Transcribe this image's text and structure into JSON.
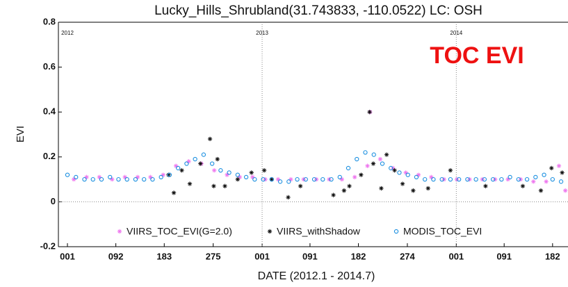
{
  "chart_data": {
    "type": "scatter",
    "title": "Lucky_Hills_Shrubland(31.743833, -110.0522) LC: OSH",
    "annotation": "TOC EVI",
    "annotation_color": "#ee1111",
    "x_label": "DATE (2012.1 - 2014.7)",
    "y_label": "EVI",
    "xlim": [
      -17,
      941
    ],
    "ylim": [
      -0.2,
      0.8
    ],
    "yticks": [
      -0.2,
      0,
      0.2,
      0.4,
      0.6,
      0.8
    ],
    "xticks": [
      {
        "value": 0,
        "label": "001"
      },
      {
        "value": 91,
        "label": "092"
      },
      {
        "value": 182,
        "label": "183"
      },
      {
        "value": 274,
        "label": "275"
      },
      {
        "value": 366,
        "label": "001"
      },
      {
        "value": 456,
        "label": "091"
      },
      {
        "value": 547,
        "label": "182"
      },
      {
        "value": 639,
        "label": "274"
      },
      {
        "value": 731,
        "label": "001"
      },
      {
        "value": 821,
        "label": "091"
      },
      {
        "value": 912,
        "label": "182"
      }
    ],
    "year_markers": [
      {
        "value": 0,
        "label": "2012"
      },
      {
        "value": 366,
        "label": "2013"
      },
      {
        "value": 731,
        "label": "2014"
      }
    ],
    "zero_line": true,
    "series": [
      {
        "name": "VIIRS_TOC_EVI(G=2.0)",
        "color": "#ee77ee",
        "marker": "asterisk",
        "x": [
          12,
          36,
          60,
          84,
          108,
          132,
          156,
          180,
          204,
          228,
          252,
          276,
          300,
          324,
          348,
          372,
          396,
          420,
          444,
          468,
          492,
          516,
          540,
          564,
          569,
          588,
          612,
          636,
          660,
          684,
          708,
          732,
          756,
          780,
          804,
          828,
          852,
          876,
          900,
          924,
          936
        ],
        "values": [
          0.1,
          0.11,
          0.11,
          0.1,
          0.11,
          0.11,
          0.11,
          0.12,
          0.16,
          0.18,
          0.17,
          0.14,
          0.12,
          0.11,
          0.11,
          0.1,
          0.1,
          0.1,
          0.1,
          0.1,
          0.1,
          0.1,
          0.11,
          0.16,
          0.4,
          0.19,
          0.15,
          0.13,
          0.12,
          0.11,
          0.1,
          0.1,
          0.1,
          0.1,
          0.1,
          0.1,
          0.1,
          0.09,
          0.09,
          0.16,
          0.05
        ]
      },
      {
        "name": "VIIRS_withShadow",
        "color": "#111111",
        "marker": "asterisk",
        "x": [
          190,
          200,
          215,
          230,
          250,
          268,
          275,
          282,
          296,
          320,
          346,
          370,
          384,
          415,
          438,
          500,
          520,
          530,
          552,
          568,
          575,
          590,
          600,
          615,
          630,
          650,
          678,
          720,
          786,
          856,
          890,
          910,
          930
        ],
        "values": [
          0.12,
          0.04,
          0.14,
          0.08,
          0.17,
          0.28,
          0.07,
          0.19,
          0.07,
          0.1,
          0.13,
          0.14,
          0.1,
          0.02,
          0.07,
          0.03,
          0.05,
          0.07,
          0.12,
          0.4,
          0.17,
          0.06,
          0.21,
          0.14,
          0.08,
          0.05,
          0.06,
          0.14,
          0.07,
          0.07,
          0.05,
          0.15,
          0.13
        ]
      },
      {
        "name": "MODIS_TOC_EVI",
        "color": "#1a8fe0",
        "marker": "circle",
        "x": [
          0,
          16,
          32,
          48,
          64,
          80,
          96,
          112,
          128,
          144,
          160,
          176,
          192,
          208,
          224,
          240,
          256,
          272,
          288,
          304,
          320,
          336,
          352,
          368,
          384,
          400,
          416,
          432,
          448,
          464,
          480,
          496,
          512,
          528,
          544,
          560,
          576,
          592,
          608,
          624,
          640,
          656,
          672,
          688,
          704,
          720,
          736,
          752,
          768,
          784,
          800,
          816,
          832,
          848,
          864,
          880,
          896,
          912,
          928
        ],
        "values": [
          0.12,
          0.11,
          0.1,
          0.1,
          0.1,
          0.11,
          0.1,
          0.1,
          0.1,
          0.1,
          0.1,
          0.11,
          0.12,
          0.15,
          0.17,
          0.19,
          0.21,
          0.17,
          0.14,
          0.13,
          0.12,
          0.11,
          0.1,
          0.1,
          0.1,
          0.09,
          0.09,
          0.1,
          0.1,
          0.1,
          0.1,
          0.1,
          0.11,
          0.15,
          0.19,
          0.22,
          0.21,
          0.17,
          0.15,
          0.13,
          0.12,
          0.11,
          0.1,
          0.1,
          0.1,
          0.1,
          0.1,
          0.1,
          0.1,
          0.1,
          0.1,
          0.1,
          0.11,
          0.1,
          0.1,
          0.11,
          0.12,
          0.1,
          0.09
        ]
      }
    ]
  }
}
